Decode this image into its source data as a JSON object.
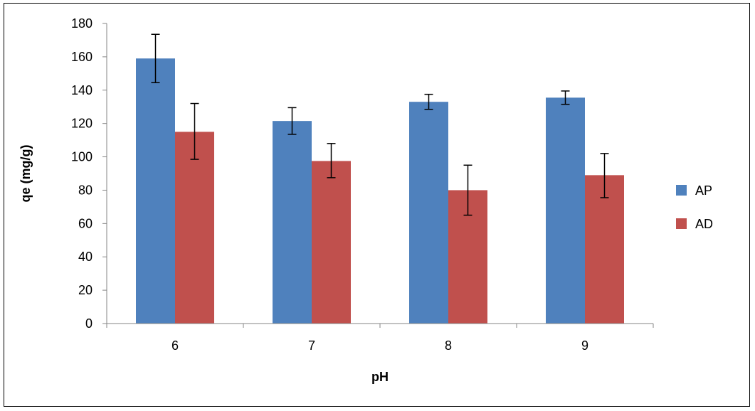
{
  "chart_data": {
    "type": "bar",
    "title": "",
    "xlabel": "pH",
    "ylabel": "qe (mg/g)",
    "categories": [
      "6",
      "7",
      "8",
      "9"
    ],
    "ylim": [
      0,
      180
    ],
    "yticks": [
      0,
      20,
      40,
      60,
      80,
      100,
      120,
      140,
      160,
      180
    ],
    "grid": false,
    "legend_position": "right",
    "series": [
      {
        "name": "AP",
        "color": "#4f81bd",
        "values": [
          159,
          121.5,
          133,
          135.5
        ],
        "error_low": [
          144.5,
          113.5,
          128.5,
          131.5
        ],
        "error_high": [
          173.5,
          129.5,
          137.5,
          139.5
        ]
      },
      {
        "name": "AD",
        "color": "#c0504d",
        "values": [
          115,
          97.5,
          80,
          89
        ],
        "error_low": [
          98.5,
          87.5,
          65,
          75.5
        ],
        "error_high": [
          132,
          108,
          95,
          102
        ]
      }
    ]
  }
}
